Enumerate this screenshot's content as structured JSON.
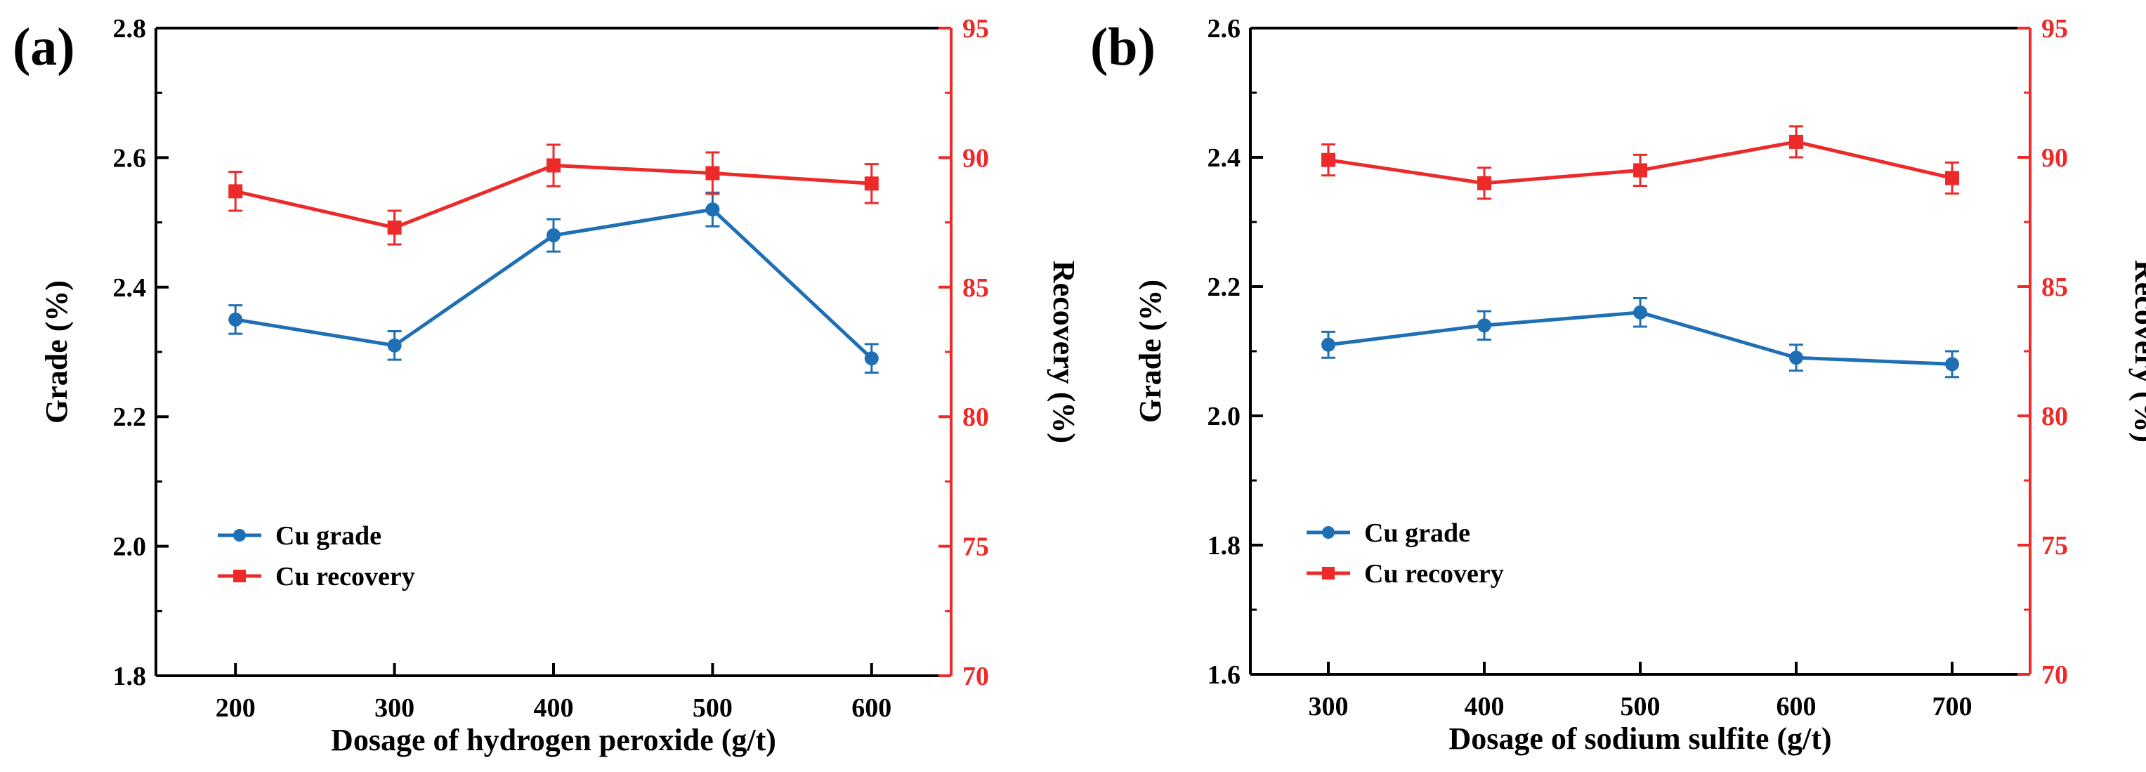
{
  "chart_data": [
    {
      "type": "line",
      "panel_label": "(a)",
      "xlabel": "Dosage of hydrogen peroxide (g/t)",
      "ylabel_left": "Grade (%)",
      "ylabel_right": "Recovery (%)",
      "x": [
        200,
        300,
        400,
        500,
        600
      ],
      "x_ticks": [
        "200",
        "300",
        "400",
        "500",
        "600"
      ],
      "xlim": [
        150,
        650
      ],
      "ylim_left": [
        1.8,
        2.8
      ],
      "ylim_right": [
        70,
        95
      ],
      "y_ticks_left": [
        "1.8",
        "2.0",
        "2.2",
        "2.4",
        "2.6",
        "2.8"
      ],
      "y_ticks_right": [
        "70",
        "75",
        "80",
        "85",
        "90",
        "95"
      ],
      "legend_position": "bottom-left",
      "series": [
        {
          "name": "Cu grade",
          "axis": "left",
          "color": "#1f6fb4",
          "marker": "circle",
          "values": [
            2.35,
            2.31,
            2.48,
            2.52,
            2.29
          ],
          "errors": [
            0.022,
            0.022,
            0.025,
            0.026,
            0.022
          ]
        },
        {
          "name": "Cu recovery",
          "axis": "right",
          "color": "#ec2a2a",
          "marker": "square",
          "values": [
            88.7,
            87.3,
            89.7,
            89.4,
            89.0
          ],
          "errors": [
            0.75,
            0.65,
            0.8,
            0.8,
            0.75
          ]
        }
      ]
    },
    {
      "type": "line",
      "panel_label": "(b)",
      "xlabel": "Dosage of sodium sulfite (g/t)",
      "ylabel_left": "Grade (%)",
      "ylabel_right": "Recovery (%)",
      "x": [
        300,
        400,
        500,
        600,
        700
      ],
      "x_ticks": [
        "300",
        "400",
        "500",
        "600",
        "700"
      ],
      "xlim": [
        250,
        750
      ],
      "ylim_left": [
        1.6,
        2.6
      ],
      "ylim_right": [
        70,
        95
      ],
      "y_ticks_left": [
        "1.6",
        "1.8",
        "2.0",
        "2.2",
        "2.4",
        "2.6"
      ],
      "y_ticks_right": [
        "70",
        "75",
        "80",
        "85",
        "90",
        "95"
      ],
      "legend_position": "bottom-left",
      "series": [
        {
          "name": "Cu grade",
          "axis": "left",
          "color": "#1f6fb4",
          "marker": "circle",
          "values": [
            2.11,
            2.14,
            2.16,
            2.09,
            2.08
          ],
          "errors": [
            0.02,
            0.022,
            0.022,
            0.02,
            0.02
          ]
        },
        {
          "name": "Cu recovery",
          "axis": "right",
          "color": "#ec2a2a",
          "marker": "square",
          "values": [
            89.9,
            89.0,
            89.5,
            90.6,
            89.2
          ],
          "errors": [
            0.6,
            0.6,
            0.6,
            0.6,
            0.6
          ]
        }
      ]
    }
  ]
}
